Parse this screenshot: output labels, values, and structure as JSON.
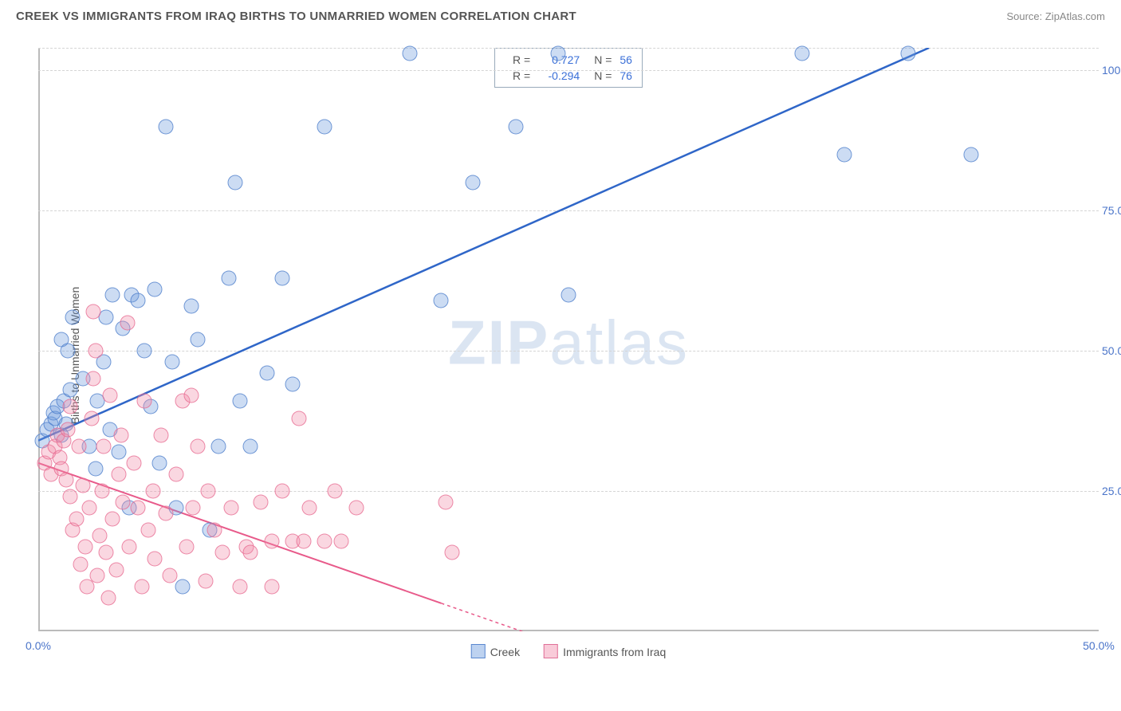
{
  "header": {
    "title": "CREEK VS IMMIGRANTS FROM IRAQ BIRTHS TO UNMARRIED WOMEN CORRELATION CHART",
    "source_prefix": "Source: ",
    "source_name": "ZipAtlas.com"
  },
  "axes": {
    "ylabel": "Births to Unmarried Women",
    "xlim": [
      0,
      50
    ],
    "ylim": [
      0,
      104
    ],
    "xticks": [
      {
        "v": 0,
        "l": "0.0%"
      },
      {
        "v": 50,
        "l": "50.0%"
      }
    ],
    "yticks": [
      {
        "v": 25,
        "l": "25.0%"
      },
      {
        "v": 50,
        "l": "50.0%"
      },
      {
        "v": 75,
        "l": "75.0%"
      },
      {
        "v": 100,
        "l": "100.0%"
      }
    ],
    "gridlines_y": [
      25,
      50,
      75,
      100,
      104
    ],
    "grid_color": "#d5d5d5",
    "axis_color": "#bbbbbb"
  },
  "series": [
    {
      "name": "Creek",
      "color": "#6d9cde",
      "stroke": "#4678c8",
      "class": "blue",
      "R": "0.727",
      "N": "56",
      "trend": {
        "x0": 0,
        "y0": 34,
        "x1": 42,
        "y1": 104,
        "dash": false,
        "color": "#2f66c8",
        "width": 2.5
      },
      "points": [
        [
          0.2,
          34
        ],
        [
          0.4,
          36
        ],
        [
          0.6,
          37
        ],
        [
          0.7,
          39
        ],
        [
          0.8,
          38
        ],
        [
          0.9,
          40
        ],
        [
          1.1,
          35
        ],
        [
          1.2,
          41
        ],
        [
          1.3,
          37
        ],
        [
          1.5,
          43
        ],
        [
          1.1,
          52
        ],
        [
          1.4,
          50
        ],
        [
          1.6,
          56
        ],
        [
          2.1,
          45
        ],
        [
          2.4,
          33
        ],
        [
          2.7,
          29
        ],
        [
          2.8,
          41
        ],
        [
          3.1,
          48
        ],
        [
          3.2,
          56
        ],
        [
          3.4,
          36
        ],
        [
          3.5,
          60
        ],
        [
          3.8,
          32
        ],
        [
          4.0,
          54
        ],
        [
          4.3,
          22
        ],
        [
          4.4,
          60
        ],
        [
          4.7,
          59
        ],
        [
          5.0,
          50
        ],
        [
          5.3,
          40
        ],
        [
          5.5,
          61
        ],
        [
          5.7,
          30
        ],
        [
          6.0,
          90
        ],
        [
          6.3,
          48
        ],
        [
          6.5,
          22
        ],
        [
          6.8,
          8
        ],
        [
          7.2,
          58
        ],
        [
          7.5,
          52
        ],
        [
          8.1,
          18
        ],
        [
          8.5,
          33
        ],
        [
          9.0,
          63
        ],
        [
          9.3,
          80
        ],
        [
          9.5,
          41
        ],
        [
          10.0,
          33
        ],
        [
          10.8,
          46
        ],
        [
          11.5,
          63
        ],
        [
          12.0,
          44
        ],
        [
          13.5,
          90
        ],
        [
          17.5,
          103
        ],
        [
          19.0,
          59
        ],
        [
          20.5,
          80
        ],
        [
          22.5,
          90
        ],
        [
          24.5,
          103
        ],
        [
          25.0,
          60
        ],
        [
          36.0,
          103
        ],
        [
          38.0,
          85
        ],
        [
          41.0,
          103
        ],
        [
          44.0,
          85
        ]
      ]
    },
    {
      "name": "Immigrants from Iraq",
      "color": "#f28caa",
      "stroke": "#e6648c",
      "class": "pink",
      "R": "-0.294",
      "N": "76",
      "trend": {
        "x0": 0,
        "y0": 30,
        "x1": 19,
        "y1": 5,
        "dash_after": 19,
        "dash_to": 28,
        "color": "#e85a8a",
        "width": 2
      },
      "points": [
        [
          0.3,
          30
        ],
        [
          0.5,
          32
        ],
        [
          0.6,
          28
        ],
        [
          0.8,
          33
        ],
        [
          0.9,
          35
        ],
        [
          1.0,
          31
        ],
        [
          1.1,
          29
        ],
        [
          1.2,
          34
        ],
        [
          1.3,
          27
        ],
        [
          1.4,
          36
        ],
        [
          1.5,
          24
        ],
        [
          1.5,
          40
        ],
        [
          1.6,
          18
        ],
        [
          1.8,
          20
        ],
        [
          1.9,
          33
        ],
        [
          2.0,
          12
        ],
        [
          2.1,
          26
        ],
        [
          2.2,
          15
        ],
        [
          2.3,
          8
        ],
        [
          2.4,
          22
        ],
        [
          2.5,
          38
        ],
        [
          2.6,
          45
        ],
        [
          2.7,
          50
        ],
        [
          2.6,
          57
        ],
        [
          2.8,
          10
        ],
        [
          2.9,
          17
        ],
        [
          3.0,
          25
        ],
        [
          3.1,
          33
        ],
        [
          3.2,
          14
        ],
        [
          3.3,
          6
        ],
        [
          3.4,
          42
        ],
        [
          3.5,
          20
        ],
        [
          3.7,
          11
        ],
        [
          3.8,
          28
        ],
        [
          3.9,
          35
        ],
        [
          4.0,
          23
        ],
        [
          4.2,
          55
        ],
        [
          4.3,
          15
        ],
        [
          4.5,
          30
        ],
        [
          4.7,
          22
        ],
        [
          4.9,
          8
        ],
        [
          5.0,
          41
        ],
        [
          5.2,
          18
        ],
        [
          5.4,
          25
        ],
        [
          5.5,
          13
        ],
        [
          5.8,
          35
        ],
        [
          6.0,
          21
        ],
        [
          6.2,
          10
        ],
        [
          6.5,
          28
        ],
        [
          6.8,
          41
        ],
        [
          7.0,
          15
        ],
        [
          7.3,
          22
        ],
        [
          7.5,
          33
        ],
        [
          7.2,
          42
        ],
        [
          7.9,
          9
        ],
        [
          8.0,
          25
        ],
        [
          8.3,
          18
        ],
        [
          8.7,
          14
        ],
        [
          9.1,
          22
        ],
        [
          9.5,
          8
        ],
        [
          9.8,
          15
        ],
        [
          10.0,
          14
        ],
        [
          10.5,
          23
        ],
        [
          11.0,
          8
        ],
        [
          11.0,
          16
        ],
        [
          11.5,
          25
        ],
        [
          12.0,
          16
        ],
        [
          12.3,
          38
        ],
        [
          12.5,
          16
        ],
        [
          12.8,
          22
        ],
        [
          13.5,
          16
        ],
        [
          14.0,
          25
        ],
        [
          14.3,
          16
        ],
        [
          15.0,
          22
        ],
        [
          19.2,
          23
        ],
        [
          19.5,
          14
        ]
      ]
    }
  ],
  "legend": {
    "stat_labels": {
      "R": "R =",
      "N": "N ="
    }
  },
  "watermark": {
    "bold": "ZIP",
    "rest": "atlas"
  }
}
